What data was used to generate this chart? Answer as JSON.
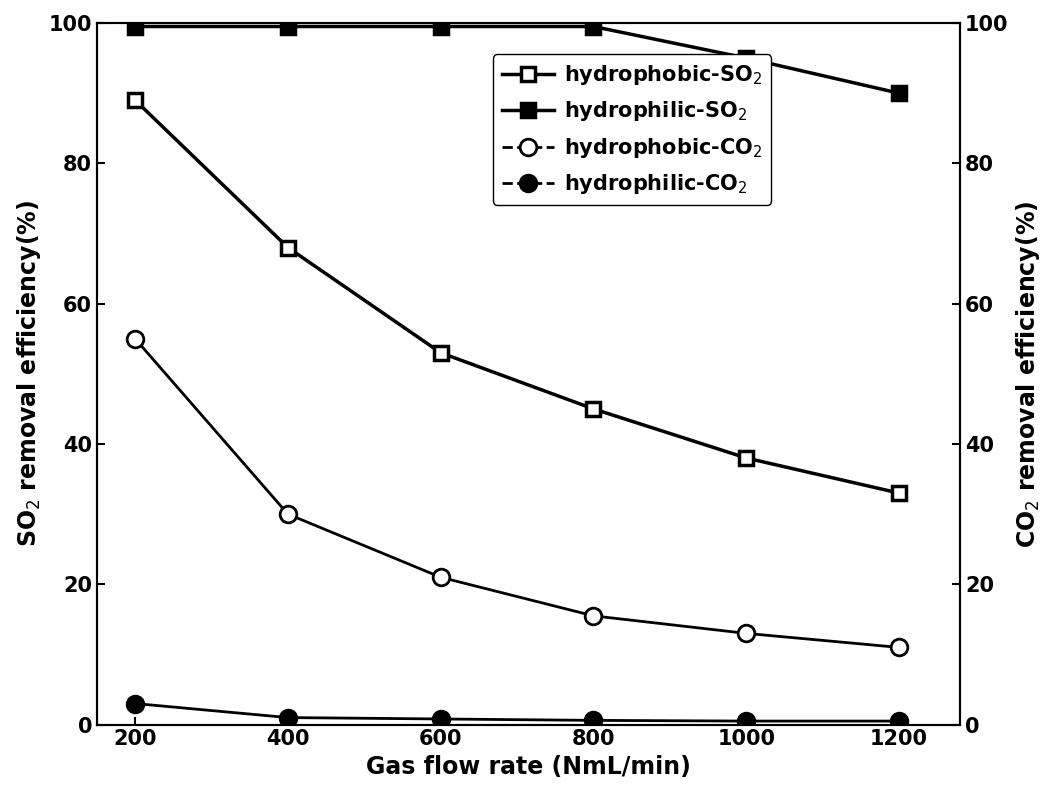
{
  "x": [
    200,
    400,
    600,
    800,
    1000,
    1200
  ],
  "hydrophobic_SO2": [
    89,
    68,
    53,
    45,
    38,
    33
  ],
  "hydrophilic_SO2": [
    99.5,
    99.5,
    99.5,
    99.5,
    95,
    90
  ],
  "hydrophobic_CO2": [
    55,
    30,
    21,
    15.5,
    13,
    11
  ],
  "hydrophilic_CO2": [
    3,
    1,
    0.8,
    0.6,
    0.5,
    0.5
  ],
  "xlabel": "Gas flow rate (NmL/min)",
  "ylabel_left": "SO$_2$ removal efficiency(%)",
  "ylabel_right": "CO$_2$ removal efficiency(%)",
  "legend_labels": [
    "hydrophobic-SO$_2$",
    "hydrophilic-SO$_2$",
    "hydrophobic-CO$_2$",
    "hydrophilic-CO$_2$"
  ],
  "xlim": [
    150,
    1280
  ],
  "ylim_left": [
    0,
    100
  ],
  "ylim_right": [
    0,
    100
  ],
  "xticks": [
    200,
    400,
    600,
    800,
    1000,
    1200
  ],
  "yticks": [
    0,
    20,
    40,
    60,
    80,
    100
  ],
  "line_color": "#000000",
  "so2_linewidth": 2.5,
  "co2_linewidth": 2.0,
  "so2_markersize": 10,
  "co2_markersize": 12,
  "label_fontsize": 17,
  "tick_fontsize": 15,
  "legend_fontsize": 15
}
